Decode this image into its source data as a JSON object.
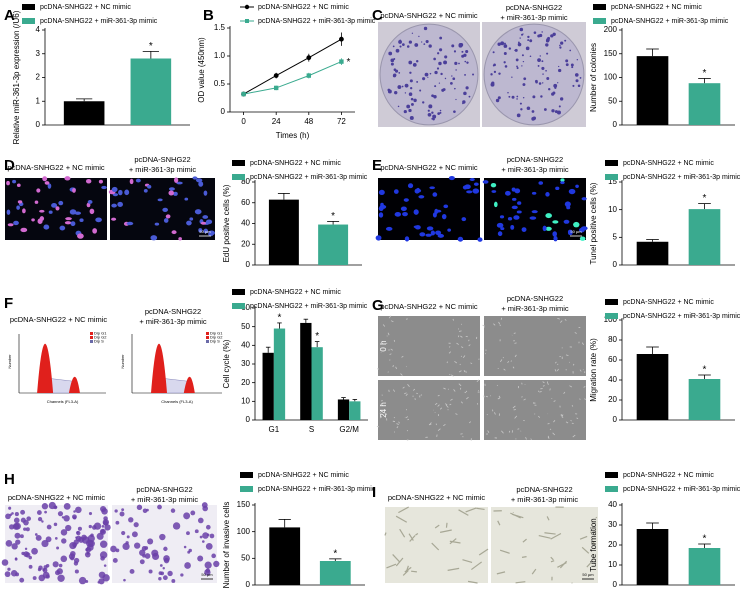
{
  "chart_data": [
    {
      "type": "bar",
      "panel": "A",
      "ylabel": "Relative miR-361-3p expression (/U6)",
      "ylim": [
        0,
        4
      ],
      "yticks": [
        0,
        1,
        2,
        3,
        4
      ],
      "series": [
        {
          "name": "pcDNA-SNHG22 + NC mimic",
          "color": "#000000",
          "values": [
            1.0
          ],
          "errors": [
            0.1
          ]
        },
        {
          "name": "pcDNA-SNHG22 + miR-361-3p mimic",
          "color": "#3aaa8f",
          "values": [
            2.8
          ],
          "errors": [
            0.3
          ]
        }
      ],
      "annotations": [
        {
          "text": "*",
          "series": 1,
          "index": 0
        }
      ]
    },
    {
      "type": "line",
      "panel": "B",
      "xlabel": "Times (h)",
      "ylabel": "OD value (450nm)",
      "x": [
        0,
        24,
        48,
        72
      ],
      "xlim": [
        -10,
        82
      ],
      "xticks": [
        0,
        24,
        48,
        72
      ],
      "ylim": [
        0,
        1.5
      ],
      "yticks": [
        0,
        0.5,
        {
          "value": 1,
          "label": "1.0"
        },
        1.5
      ],
      "series": [
        {
          "name": "pcDNA-SNHG22 + NC mimic",
          "color": "#000000",
          "values": [
            0.32,
            0.65,
            0.97,
            1.3
          ],
          "errors": [
            0.03,
            0.05,
            0.07,
            0.12
          ]
        },
        {
          "name": "pcDNA-SNHG22 + miR-361-3p mimic",
          "color": "#3aaa8f",
          "values": [
            0.32,
            0.43,
            0.65,
            0.9
          ],
          "errors": [
            0.02,
            0.04,
            0.05,
            0.06
          ]
        }
      ],
      "annotations": [
        {
          "text": "*",
          "series": 1,
          "index": 3
        }
      ]
    },
    {
      "type": "bar",
      "panel": "C",
      "ylabel": "Number of colonies",
      "ylim": [
        0,
        200
      ],
      "yticks": [
        0,
        50,
        100,
        150,
        200
      ],
      "image_labels": [
        [
          "pcDNA-SNHG22 + NC mimic"
        ],
        [
          "pcDNA-SNHG22",
          "+ miR-361-3p mimic"
        ]
      ],
      "series": [
        {
          "name": "pcDNA-SNHG22 + NC mimic",
          "color": "#000000",
          "values": [
            145
          ],
          "errors": [
            15
          ]
        },
        {
          "name": "pcDNA-SNHG22 + miR-361-3p mimic",
          "color": "#3aaa8f",
          "values": [
            88
          ],
          "errors": [
            10
          ]
        }
      ],
      "annotations": [
        {
          "text": "*",
          "series": 1,
          "index": 0
        }
      ]
    },
    {
      "type": "bar",
      "panel": "D",
      "ylabel": "EdU positive cells (%)",
      "ylim": [
        0,
        80
      ],
      "yticks": [
        0,
        20,
        40,
        60,
        80
      ],
      "image_labels": [
        [
          "pcDNA-SNHG22 + NC mimic"
        ],
        [
          "pcDNA-SNHG22",
          "+ miR-361-3p mimic"
        ]
      ],
      "scale_bar": "50 µm",
      "series": [
        {
          "name": "pcDNA-SNHG22 + NC mimic",
          "color": "#000000",
          "values": [
            63
          ],
          "errors": [
            6
          ]
        },
        {
          "name": "pcDNA-SNHG22 + miR-361-3p mimic",
          "color": "#3aaa8f",
          "values": [
            39
          ],
          "errors": [
            3
          ]
        }
      ],
      "annotations": [
        {
          "text": "*",
          "series": 1,
          "index": 0
        }
      ]
    },
    {
      "type": "bar",
      "panel": "E",
      "ylabel": "Tunel positive cells (%)",
      "ylim": [
        0,
        15
      ],
      "yticks": [
        0,
        5,
        10,
        15
      ],
      "image_labels": [
        [
          "pcDNA-SNHG22 + NC mimic"
        ],
        [
          "pcDNA-SNHG22",
          "+ miR-361-3p mimic"
        ]
      ],
      "scale_bar": "50 µm",
      "series": [
        {
          "name": "pcDNA-SNHG22 + NC mimic",
          "color": "#000000",
          "values": [
            4.2
          ],
          "errors": [
            0.4
          ]
        },
        {
          "name": "pcDNA-SNHG22 + miR-361-3p mimic",
          "color": "#3aaa8f",
          "values": [
            10.1
          ],
          "errors": [
            1.0
          ]
        }
      ],
      "annotations": [
        {
          "text": "*",
          "series": 1,
          "index": 0
        }
      ]
    },
    {
      "type": "bar",
      "panel": "F",
      "ylabel": "Cell cycle (%)",
      "categories": [
        "G1",
        "S",
        "G2/M"
      ],
      "ylim": [
        0,
        60
      ],
      "yticks": [
        0,
        10,
        20,
        30,
        40,
        50,
        60
      ],
      "image_labels": [
        [
          "pcDNA-SNHG22 + NC mimic"
        ],
        [
          "pcDNA-SNHG22",
          "+ miR-361-3p mimic"
        ]
      ],
      "flow_labels": {
        "y": "Number",
        "x": "Channels (FL3-A)",
        "legend": [
          "Dip G1",
          "Dip G2",
          "Dip S"
        ]
      },
      "series": [
        {
          "name": "pcDNA-SNHG22 + NC mimic",
          "color": "#000000",
          "values": [
            36,
            52,
            11
          ],
          "errors": [
            3,
            2,
            1
          ]
        },
        {
          "name": "pcDNA-SNHG22 + miR-361-3p mimic",
          "color": "#3aaa8f",
          "values": [
            49,
            39,
            10
          ],
          "errors": [
            3,
            3,
            1
          ]
        }
      ],
      "annotations": [
        {
          "text": "*",
          "series": 1,
          "index": 0
        },
        {
          "text": "*",
          "series": 1,
          "index": 1
        }
      ]
    },
    {
      "type": "bar",
      "panel": "G",
      "ylabel": "Migration rate (%)",
      "ylim": [
        0,
        100
      ],
      "yticks": [
        0,
        20,
        40,
        60,
        80,
        100
      ],
      "image_labels": [
        [
          "pcDNA-SNHG22 + NC mimic"
        ],
        [
          "pcDNA-SNHG22",
          "+ miR-361-3p mimic"
        ]
      ],
      "image_rows": [
        "0 h",
        "24 h"
      ],
      "series": [
        {
          "name": "pcDNA-SNHG22 + NC mimic",
          "color": "#000000",
          "values": [
            66
          ],
          "errors": [
            7
          ]
        },
        {
          "name": "pcDNA-SNHG22 + miR-361-3p mimic",
          "color": "#3aaa8f",
          "values": [
            41
          ],
          "errors": [
            4
          ]
        }
      ],
      "annotations": [
        {
          "text": "*",
          "series": 1,
          "index": 0
        }
      ]
    },
    {
      "type": "bar",
      "panel": "H",
      "ylabel": "Number of invasive cells",
      "ylim": [
        0,
        150
      ],
      "yticks": [
        0,
        50,
        100,
        150
      ],
      "image_labels": [
        [
          "pcDNA-SNHG22 + NC mimic"
        ],
        [
          "pcDNA-SNHG22",
          "+ miR-361-3p mimic"
        ]
      ],
      "scale_bar": "50 µm",
      "series": [
        {
          "name": "pcDNA-SNHG22 + NC mimic",
          "color": "#000000",
          "values": [
            108
          ],
          "errors": [
            15
          ]
        },
        {
          "name": "pcDNA-SNHG22 + miR-361-3p mimic",
          "color": "#3aaa8f",
          "values": [
            45
          ],
          "errors": [
            4
          ]
        }
      ],
      "annotations": [
        {
          "text": "*",
          "series": 1,
          "index": 0
        }
      ]
    },
    {
      "type": "bar",
      "panel": "I",
      "ylabel": "Tube formation",
      "ylim": [
        0,
        40
      ],
      "yticks": [
        0,
        10,
        20,
        30,
        40
      ],
      "image_labels": [
        [
          "pcDNA-SNHG22 + NC mimic"
        ],
        [
          "pcDNA-SNHG22",
          "+ miR-361-3p mimic"
        ]
      ],
      "scale_bar": "50 µm",
      "series": [
        {
          "name": "pcDNA-SNHG22 + NC mimic",
          "color": "#000000",
          "values": [
            28
          ],
          "errors": [
            3
          ]
        },
        {
          "name": "pcDNA-SNHG22 + miR-361-3p mimic",
          "color": "#3aaa8f",
          "values": [
            18.5
          ],
          "errors": [
            2
          ]
        }
      ],
      "annotations": [
        {
          "text": "*",
          "series": 1,
          "index": 0
        }
      ]
    }
  ]
}
